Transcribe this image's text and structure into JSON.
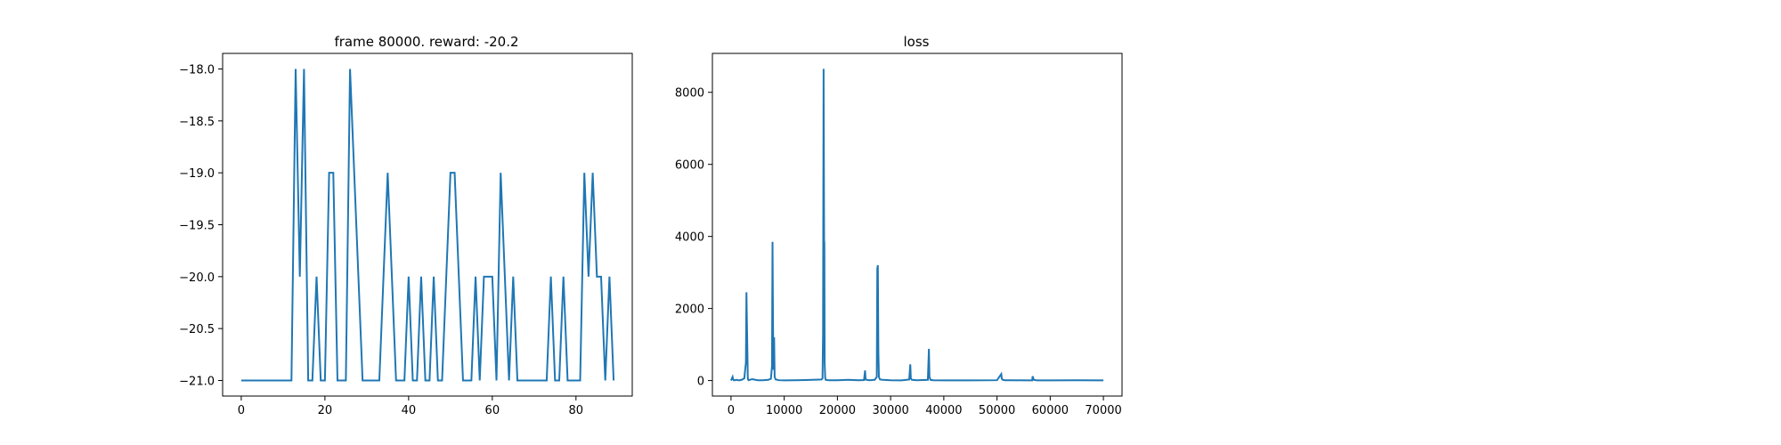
{
  "figure": {
    "background": "#ffffff",
    "line_color": "#1f77b4"
  },
  "chart_data": [
    {
      "type": "line",
      "title": "frame 80000. reward: -20.2",
      "xlabel": "",
      "ylabel": "",
      "xlim": [
        -4.45,
        93.45
      ],
      "ylim": [
        -21.15,
        -17.85
      ],
      "xticks": [
        0,
        20,
        40,
        60,
        80
      ],
      "xtick_labels": [
        "0",
        "20",
        "40",
        "60",
        "80"
      ],
      "yticks": [
        -21.0,
        -20.5,
        -20.0,
        -19.5,
        -19.0,
        -18.5,
        -18.0
      ],
      "ytick_labels": [
        "−21.0",
        "−20.5",
        "−20.0",
        "−19.5",
        "−19.0",
        "−18.5",
        "−18.0"
      ],
      "grid": false,
      "series": [
        {
          "color": "#1f77b4",
          "x": [
            0,
            1,
            2,
            3,
            4,
            5,
            6,
            7,
            8,
            9,
            10,
            11,
            12,
            13,
            14,
            15,
            16,
            17,
            18,
            19,
            20,
            21,
            22,
            23,
            24,
            25,
            26,
            27,
            28,
            29,
            30,
            31,
            32,
            33,
            34,
            35,
            36,
            37,
            38,
            39,
            40,
            41,
            42,
            43,
            44,
            45,
            46,
            47,
            48,
            49,
            50,
            51,
            52,
            53,
            54,
            55,
            56,
            57,
            58,
            59,
            60,
            61,
            62,
            63,
            64,
            65,
            66,
            67,
            68,
            69,
            70,
            71,
            72,
            73,
            74,
            75,
            76,
            77,
            78,
            79,
            80,
            81,
            82,
            83,
            84,
            85,
            86,
            87,
            88,
            89
          ],
          "y": [
            -21,
            -21,
            -21,
            -21,
            -21,
            -21,
            -21,
            -21,
            -21,
            -21,
            -21,
            -21,
            -21,
            -18,
            -20,
            -18,
            -21,
            -21,
            -20,
            -21,
            -21,
            -19,
            -19,
            -21,
            -21,
            -21,
            -18,
            -19,
            -20,
            -21,
            -21,
            -21,
            -21,
            -21,
            -20,
            -19,
            -20,
            -21,
            -21,
            -21,
            -20,
            -21,
            -21,
            -20,
            -21,
            -21,
            -20,
            -21,
            -21,
            -20,
            -19,
            -19,
            -20,
            -21,
            -21,
            -21,
            -20,
            -21,
            -20,
            -20,
            -20,
            -21,
            -19,
            -20,
            -21,
            -20,
            -21,
            -21,
            -21,
            -21,
            -21,
            -21,
            -21,
            -21,
            -20,
            -21,
            -21,
            -20,
            -21,
            -21,
            -21,
            -21,
            -19,
            -20,
            -19,
            -20,
            -20,
            -21,
            -20,
            -21
          ]
        }
      ]
    },
    {
      "type": "line",
      "title": "loss",
      "xlabel": "",
      "ylabel": "",
      "xlim": [
        -3500,
        73500
      ],
      "ylim": [
        -430,
        9080
      ],
      "xticks": [
        0,
        10000,
        20000,
        30000,
        40000,
        50000,
        60000,
        70000
      ],
      "xtick_labels": [
        "0",
        "10000",
        "20000",
        "30000",
        "40000",
        "50000",
        "60000",
        "70000"
      ],
      "yticks": [
        0,
        2000,
        4000,
        6000,
        8000
      ],
      "ytick_labels": [
        "0",
        "2000",
        "4000",
        "6000",
        "8000"
      ],
      "grid": false,
      "series": [
        {
          "color": "#1f77b4",
          "x": [
            0,
            300,
            400,
            500,
            700,
            1000,
            1500,
            2000,
            2500,
            2800,
            2900,
            3000,
            3100,
            3150,
            3200,
            3300,
            3500,
            4000,
            5000,
            6000,
            7000,
            7500,
            7700,
            7800,
            7900,
            8000,
            8100,
            8200,
            8400,
            9000,
            10000,
            12000,
            14000,
            16000,
            17000,
            17200,
            17300,
            17400,
            17500,
            17550,
            17600,
            17700,
            17800,
            18000,
            18500,
            20000,
            22000,
            24000,
            25000,
            25200,
            25300,
            25500,
            26000,
            27000,
            27400,
            27500,
            27600,
            27700,
            27800,
            28000,
            28500,
            30000,
            32000,
            33500,
            33700,
            33800,
            34000,
            35000,
            37000,
            37200,
            37300,
            37500,
            38000,
            40000,
            45000,
            50000,
            50800,
            50900,
            51100,
            51500,
            53000,
            56000,
            56600,
            56700,
            56900,
            57500,
            60000,
            65000,
            70000
          ],
          "y": [
            0,
            100,
            30,
            10,
            10,
            20,
            5,
            20,
            60,
            500,
            2450,
            1500,
            600,
            100,
            30,
            10,
            20,
            40,
            10,
            10,
            20,
            50,
            400,
            3850,
            1500,
            300,
            1200,
            100,
            30,
            10,
            5,
            8,
            15,
            25,
            30,
            60,
            1300,
            8650,
            3900,
            3800,
            500,
            80,
            20,
            15,
            10,
            8,
            20,
            10,
            15,
            280,
            30,
            20,
            10,
            20,
            100,
            3100,
            3200,
            800,
            100,
            30,
            20,
            10,
            5,
            30,
            450,
            60,
            20,
            10,
            20,
            880,
            100,
            20,
            10,
            5,
            5,
            10,
            180,
            50,
            20,
            10,
            8,
            5,
            5,
            120,
            20,
            5,
            5,
            10,
            5
          ]
        }
      ]
    }
  ]
}
